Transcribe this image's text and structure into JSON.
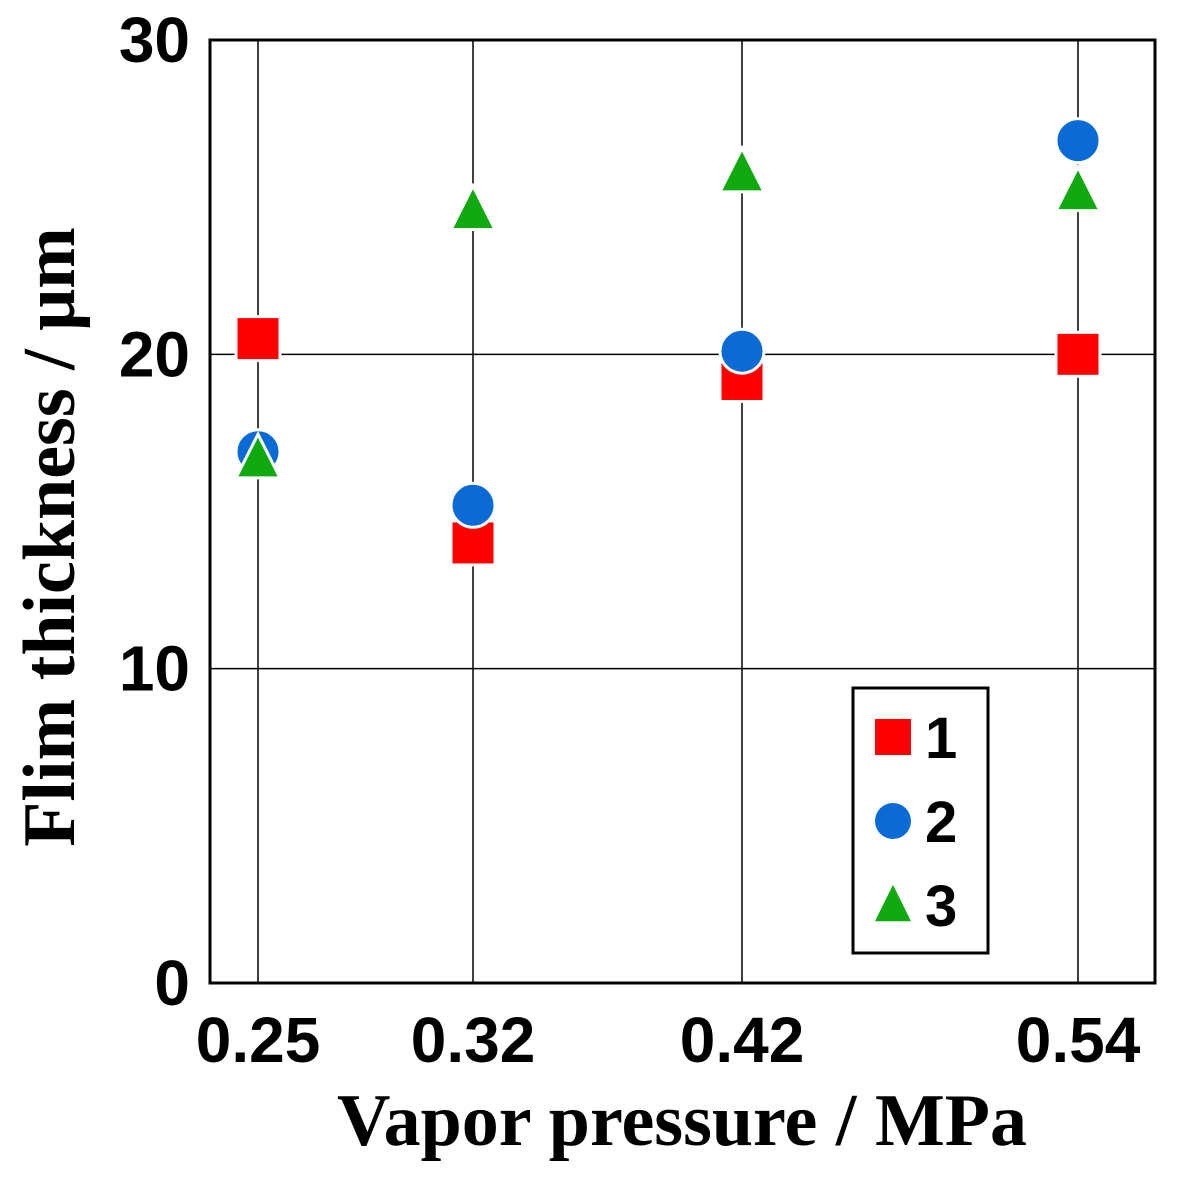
{
  "chart_data": {
    "type": "scatter",
    "xlabel": "Vapor pressure / MPa",
    "ylabel": "Flim thickness / μm",
    "categories": [
      "0.25",
      "0.32",
      "0.42",
      "0.54"
    ],
    "x_positions": [
      0.25,
      0.32,
      0.42,
      0.54
    ],
    "ylim": [
      0,
      30
    ],
    "y_ticks": [
      0,
      10,
      20,
      30
    ],
    "grid": true,
    "legend_position": "bottom-right",
    "series": [
      {
        "name": "1",
        "marker": "square",
        "color": "#ff0000",
        "values": [
          20.5,
          14.0,
          19.2,
          20.0
        ]
      },
      {
        "name": "2",
        "marker": "circle",
        "color": "#0a6ad6",
        "values": [
          16.9,
          15.2,
          20.1,
          26.8
        ]
      },
      {
        "name": "3",
        "marker": "triangle",
        "color": "#10aa10",
        "values": [
          16.7,
          24.6,
          25.8,
          25.2
        ]
      }
    ]
  }
}
